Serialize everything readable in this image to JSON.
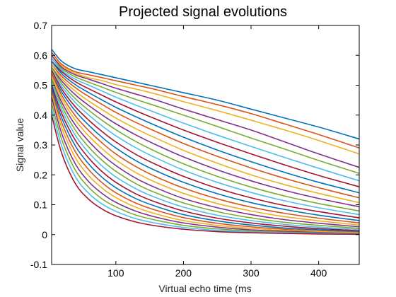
{
  "chart_data": {
    "type": "line",
    "title": "Projected signal evolutions",
    "xlabel": "Virtual echo time (ms",
    "ylabel": "Signal value",
    "xlim": [
      5,
      460
    ],
    "ylim": [
      -0.1,
      0.7
    ],
    "xticks": [
      100,
      200,
      300,
      400
    ],
    "yticks": [
      -0.1,
      0,
      0.1,
      0.2,
      0.3,
      0.4,
      0.5,
      0.6,
      0.7
    ],
    "grid": false,
    "x": [
      5,
      20,
      40,
      60,
      80,
      100,
      130,
      160,
      200,
      250,
      300,
      350,
      400,
      460
    ],
    "series_note_colors": [
      "#0072BD",
      "#D95319",
      "#EDB120",
      "#7E2F8E",
      "#77AC30",
      "#4DBEEE",
      "#A2142F"
    ],
    "series": [
      {
        "values": [
          0.62,
          0.58,
          0.555,
          0.545,
          0.535,
          0.525,
          0.51,
          0.495,
          0.475,
          0.45,
          0.42,
          0.39,
          0.36,
          0.32
        ]
      },
      {
        "values": [
          0.61,
          0.57,
          0.545,
          0.535,
          0.525,
          0.515,
          0.5,
          0.485,
          0.462,
          0.435,
          0.405,
          0.37,
          0.335,
          0.29
        ]
      },
      {
        "values": [
          0.6,
          0.565,
          0.54,
          0.525,
          0.515,
          0.502,
          0.487,
          0.47,
          0.445,
          0.415,
          0.383,
          0.35,
          0.315,
          0.27
        ]
      },
      {
        "values": [
          0.6,
          0.56,
          0.535,
          0.52,
          0.505,
          0.49,
          0.47,
          0.45,
          0.42,
          0.385,
          0.35,
          0.31,
          0.27,
          0.225
        ]
      },
      {
        "values": [
          0.59,
          0.555,
          0.528,
          0.51,
          0.493,
          0.476,
          0.452,
          0.43,
          0.4,
          0.362,
          0.323,
          0.286,
          0.248,
          0.205
        ]
      },
      {
        "values": [
          0.59,
          0.55,
          0.52,
          0.5,
          0.48,
          0.46,
          0.433,
          0.407,
          0.373,
          0.333,
          0.295,
          0.258,
          0.222,
          0.18
        ]
      },
      {
        "values": [
          0.58,
          0.545,
          0.512,
          0.488,
          0.466,
          0.444,
          0.414,
          0.386,
          0.35,
          0.309,
          0.27,
          0.233,
          0.198,
          0.16
        ]
      },
      {
        "values": [
          0.58,
          0.538,
          0.502,
          0.475,
          0.45,
          0.426,
          0.394,
          0.364,
          0.326,
          0.283,
          0.244,
          0.208,
          0.175,
          0.14
        ]
      },
      {
        "values": [
          0.57,
          0.53,
          0.492,
          0.462,
          0.435,
          0.409,
          0.375,
          0.344,
          0.305,
          0.262,
          0.223,
          0.188,
          0.157,
          0.123
        ]
      },
      {
        "values": [
          0.57,
          0.522,
          0.48,
          0.447,
          0.418,
          0.39,
          0.354,
          0.322,
          0.282,
          0.239,
          0.2,
          0.167,
          0.138,
          0.107
        ]
      },
      {
        "values": [
          0.56,
          0.514,
          0.468,
          0.432,
          0.4,
          0.371,
          0.333,
          0.3,
          0.26,
          0.217,
          0.18,
          0.148,
          0.121,
          0.093
        ]
      },
      {
        "values": [
          0.56,
          0.505,
          0.455,
          0.416,
          0.382,
          0.351,
          0.311,
          0.277,
          0.237,
          0.195,
          0.159,
          0.129,
          0.104,
          0.079
        ]
      },
      {
        "values": [
          0.55,
          0.496,
          0.442,
          0.4,
          0.363,
          0.331,
          0.29,
          0.256,
          0.216,
          0.175,
          0.141,
          0.113,
          0.09,
          0.067
        ]
      },
      {
        "values": [
          0.55,
          0.487,
          0.428,
          0.383,
          0.344,
          0.31,
          0.268,
          0.234,
          0.195,
          0.155,
          0.123,
          0.097,
          0.077,
          0.056
        ]
      },
      {
        "values": [
          0.54,
          0.477,
          0.414,
          0.366,
          0.325,
          0.29,
          0.247,
          0.213,
          0.175,
          0.137,
          0.107,
          0.084,
          0.065,
          0.047
        ]
      },
      {
        "values": [
          0.54,
          0.466,
          0.398,
          0.348,
          0.306,
          0.27,
          0.227,
          0.193,
          0.156,
          0.12,
          0.092,
          0.071,
          0.055,
          0.039
        ]
      },
      {
        "values": [
          0.53,
          0.455,
          0.383,
          0.33,
          0.287,
          0.25,
          0.207,
          0.174,
          0.138,
          0.104,
          0.079,
          0.06,
          0.046,
          0.032
        ]
      },
      {
        "values": [
          0.52,
          0.443,
          0.367,
          0.312,
          0.267,
          0.231,
          0.188,
          0.156,
          0.121,
          0.09,
          0.067,
          0.05,
          0.038,
          0.026
        ]
      },
      {
        "values": [
          0.52,
          0.431,
          0.35,
          0.293,
          0.248,
          0.212,
          0.17,
          0.139,
          0.106,
          0.077,
          0.056,
          0.041,
          0.031,
          0.021
        ]
      },
      {
        "values": [
          0.51,
          0.418,
          0.333,
          0.274,
          0.229,
          0.193,
          0.153,
          0.123,
          0.092,
          0.065,
          0.047,
          0.034,
          0.025,
          0.017
        ]
      },
      {
        "values": [
          0.5,
          0.405,
          0.316,
          0.256,
          0.21,
          0.175,
          0.136,
          0.108,
          0.079,
          0.055,
          0.039,
          0.028,
          0.02,
          0.013
        ]
      },
      {
        "values": [
          0.49,
          0.39,
          0.297,
          0.236,
          0.191,
          0.157,
          0.12,
          0.094,
          0.067,
          0.046,
          0.032,
          0.022,
          0.016,
          0.01
        ]
      },
      {
        "values": [
          0.48,
          0.374,
          0.278,
          0.217,
          0.173,
          0.14,
          0.105,
          0.081,
          0.057,
          0.038,
          0.026,
          0.018,
          0.012,
          0.008
        ]
      },
      {
        "values": [
          0.47,
          0.357,
          0.258,
          0.197,
          0.155,
          0.124,
          0.091,
          0.069,
          0.047,
          0.031,
          0.021,
          0.014,
          0.01,
          0.006
        ]
      },
      {
        "values": [
          0.46,
          0.338,
          0.237,
          0.177,
          0.137,
          0.108,
          0.078,
          0.058,
          0.039,
          0.025,
          0.016,
          0.011,
          0.007,
          0.004
        ]
      },
      {
        "values": [
          0.44,
          0.318,
          0.216,
          0.158,
          0.119,
          0.093,
          0.065,
          0.048,
          0.031,
          0.019,
          0.012,
          0.008,
          0.005,
          0.003
        ]
      },
      {
        "values": [
          0.42,
          0.296,
          0.194,
          0.138,
          0.102,
          0.078,
          0.053,
          0.038,
          0.024,
          0.014,
          0.009,
          0.006,
          0.004,
          0.002
        ]
      },
      {
        "values": [
          0.4,
          0.272,
          0.171,
          0.118,
          0.085,
          0.063,
          0.042,
          0.029,
          0.018,
          0.01,
          0.006,
          0.004,
          0.002,
          0.001
        ]
      }
    ]
  }
}
